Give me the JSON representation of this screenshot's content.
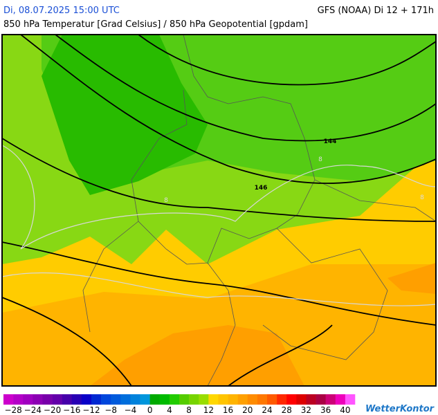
{
  "header": {
    "datetime": "Di, 08.07.2025 15:00 UTC",
    "model": "GFS (NOAA) Di 12 + 171h",
    "subtitle": "850 hPa Temperatur [Grad Celsius] / 850 hPa Geopotential [gpdam]"
  },
  "map": {
    "contour_labels": [
      "144",
      "146"
    ],
    "isotherm_labels": [
      "8",
      "8",
      "8"
    ]
  },
  "colorbar": {
    "labels": [
      "−28",
      "−24",
      "−20",
      "−16",
      "−12",
      "−8",
      "−4",
      "0",
      "4",
      "8",
      "12",
      "16",
      "20",
      "24",
      "28",
      "32",
      "36",
      "40"
    ],
    "colors": [
      "#cc00cc",
      "#b400c8",
      "#a000c0",
      "#8c00b4",
      "#7800aa",
      "#6400aa",
      "#4600aa",
      "#2800b4",
      "#0a00c8",
      "#0028d2",
      "#0046dc",
      "#005adc",
      "#006edc",
      "#0082dc",
      "#0096dc",
      "#00aa00",
      "#00bb00",
      "#22cc00",
      "#55cc00",
      "#77d400",
      "#99dd00",
      "#ffd700",
      "#ffc400",
      "#ffb400",
      "#ffa000",
      "#ff8c00",
      "#ff7800",
      "#ff5a00",
      "#ff2800",
      "#ff0000",
      "#dd0000",
      "#bb0022",
      "#aa0044",
      "#cc0077",
      "#ee00bb",
      "#ff55ff"
    ]
  },
  "brand": "WetterKontor"
}
